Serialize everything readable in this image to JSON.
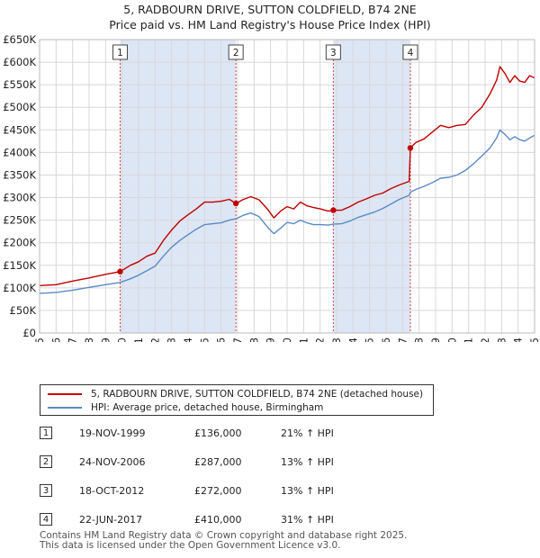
{
  "header": {
    "title": "5, RADBOURN DRIVE, SUTTON COLDFIELD, B74 2NE",
    "subtitle": "Price paid vs. HM Land Registry's House Price Index (HPI)"
  },
  "colors": {
    "property": "#c00000",
    "hpi": "#5a8ac6",
    "shade": "#dde6f5",
    "marker": "#d04040"
  },
  "chart_data": {
    "type": "line",
    "xlim": [
      1995,
      2025
    ],
    "ylim": [
      0,
      650000
    ],
    "x_ticks": [
      "1995",
      "1996",
      "1997",
      "1998",
      "1999",
      "2000",
      "2001",
      "2002",
      "2003",
      "2004",
      "2005",
      "2006",
      "2007",
      "2008",
      "2009",
      "2010",
      "2011",
      "2012",
      "2013",
      "2014",
      "2015",
      "2016",
      "2017",
      "2018",
      "2019",
      "2020",
      "2021",
      "2022",
      "2023",
      "2024",
      "2025"
    ],
    "y_ticks": [
      {
        "value": 0,
        "label": "£0"
      },
      {
        "value": 50000,
        "label": "£50K"
      },
      {
        "value": 100000,
        "label": "£100K"
      },
      {
        "value": 150000,
        "label": "£150K"
      },
      {
        "value": 200000,
        "label": "£200K"
      },
      {
        "value": 250000,
        "label": "£250K"
      },
      {
        "value": 300000,
        "label": "£300K"
      },
      {
        "value": 350000,
        "label": "£350K"
      },
      {
        "value": 400000,
        "label": "£400K"
      },
      {
        "value": 450000,
        "label": "£450K"
      },
      {
        "value": 500000,
        "label": "£500K"
      },
      {
        "value": 550000,
        "label": "£550K"
      },
      {
        "value": 600000,
        "label": "£600K"
      },
      {
        "value": 650000,
        "label": "£650K"
      }
    ],
    "grid": true,
    "series": [
      {
        "name": "5, RADBOURN DRIVE, SUTTON COLDFIELD, B74 2NE (detached house)",
        "color": "#c00000",
        "points": [
          [
            1995.0,
            105000
          ],
          [
            1996.0,
            107000
          ],
          [
            1997.0,
            115000
          ],
          [
            1998.0,
            122000
          ],
          [
            1999.0,
            130000
          ],
          [
            1999.88,
            136000
          ],
          [
            2000.5,
            150000
          ],
          [
            2001.0,
            158000
          ],
          [
            2001.5,
            170000
          ],
          [
            2002.0,
            177000
          ],
          [
            2002.5,
            205000
          ],
          [
            2003.0,
            228000
          ],
          [
            2003.5,
            248000
          ],
          [
            2004.0,
            262000
          ],
          [
            2004.5,
            275000
          ],
          [
            2005.0,
            290000
          ],
          [
            2005.5,
            290000
          ],
          [
            2006.0,
            292000
          ],
          [
            2006.5,
            296000
          ],
          [
            2006.9,
            287000
          ],
          [
            2007.3,
            295000
          ],
          [
            2007.8,
            302000
          ],
          [
            2008.3,
            295000
          ],
          [
            2008.8,
            275000
          ],
          [
            2009.2,
            255000
          ],
          [
            2009.6,
            270000
          ],
          [
            2010.0,
            280000
          ],
          [
            2010.4,
            275000
          ],
          [
            2010.8,
            290000
          ],
          [
            2011.2,
            282000
          ],
          [
            2011.6,
            278000
          ],
          [
            2012.0,
            275000
          ],
          [
            2012.5,
            270000
          ],
          [
            2012.8,
            272000
          ],
          [
            2013.3,
            272000
          ],
          [
            2013.8,
            280000
          ],
          [
            2014.3,
            290000
          ],
          [
            2014.8,
            297000
          ],
          [
            2015.3,
            305000
          ],
          [
            2015.8,
            310000
          ],
          [
            2016.3,
            320000
          ],
          [
            2016.8,
            328000
          ],
          [
            2017.4,
            336000
          ],
          [
            2017.47,
            410000
          ],
          [
            2017.8,
            422000
          ],
          [
            2018.3,
            430000
          ],
          [
            2018.8,
            445000
          ],
          [
            2019.3,
            460000
          ],
          [
            2019.8,
            455000
          ],
          [
            2020.3,
            460000
          ],
          [
            2020.8,
            462000
          ],
          [
            2021.3,
            483000
          ],
          [
            2021.8,
            500000
          ],
          [
            2022.3,
            530000
          ],
          [
            2022.7,
            560000
          ],
          [
            2022.9,
            590000
          ],
          [
            2023.2,
            575000
          ],
          [
            2023.5,
            555000
          ],
          [
            2023.8,
            570000
          ],
          [
            2024.1,
            558000
          ],
          [
            2024.4,
            555000
          ],
          [
            2024.7,
            570000
          ],
          [
            2025.0,
            565000
          ]
        ]
      },
      {
        "name": "HPI: Average price, detached house, Birmingham",
        "color": "#5a8ac6",
        "points": [
          [
            1995.0,
            88000
          ],
          [
            1996.0,
            90000
          ],
          [
            1997.0,
            95000
          ],
          [
            1998.0,
            101000
          ],
          [
            1999.0,
            107000
          ],
          [
            1999.88,
            112000
          ],
          [
            2000.5,
            120000
          ],
          [
            2001.0,
            128000
          ],
          [
            2001.5,
            138000
          ],
          [
            2002.0,
            148000
          ],
          [
            2002.5,
            170000
          ],
          [
            2003.0,
            190000
          ],
          [
            2003.5,
            205000
          ],
          [
            2004.0,
            218000
          ],
          [
            2004.5,
            230000
          ],
          [
            2005.0,
            240000
          ],
          [
            2005.5,
            242000
          ],
          [
            2006.0,
            244000
          ],
          [
            2006.5,
            250000
          ],
          [
            2006.9,
            253000
          ],
          [
            2007.3,
            260000
          ],
          [
            2007.8,
            266000
          ],
          [
            2008.3,
            258000
          ],
          [
            2008.8,
            235000
          ],
          [
            2009.2,
            220000
          ],
          [
            2009.6,
            232000
          ],
          [
            2010.0,
            245000
          ],
          [
            2010.4,
            242000
          ],
          [
            2010.8,
            250000
          ],
          [
            2011.2,
            244000
          ],
          [
            2011.6,
            240000
          ],
          [
            2012.0,
            240000
          ],
          [
            2012.5,
            239000
          ],
          [
            2012.8,
            241000
          ],
          [
            2013.3,
            242000
          ],
          [
            2013.8,
            248000
          ],
          [
            2014.3,
            256000
          ],
          [
            2014.8,
            262000
          ],
          [
            2015.3,
            268000
          ],
          [
            2015.8,
            276000
          ],
          [
            2016.3,
            286000
          ],
          [
            2016.8,
            296000
          ],
          [
            2017.4,
            305000
          ],
          [
            2017.47,
            312000
          ],
          [
            2017.8,
            318000
          ],
          [
            2018.3,
            325000
          ],
          [
            2018.8,
            333000
          ],
          [
            2019.3,
            343000
          ],
          [
            2019.8,
            345000
          ],
          [
            2020.3,
            350000
          ],
          [
            2020.8,
            360000
          ],
          [
            2021.3,
            375000
          ],
          [
            2021.8,
            392000
          ],
          [
            2022.3,
            410000
          ],
          [
            2022.7,
            432000
          ],
          [
            2022.9,
            450000
          ],
          [
            2023.2,
            440000
          ],
          [
            2023.5,
            428000
          ],
          [
            2023.8,
            435000
          ],
          [
            2024.1,
            428000
          ],
          [
            2024.4,
            425000
          ],
          [
            2024.7,
            432000
          ],
          [
            2025.0,
            438000
          ]
        ]
      }
    ],
    "shaded_ranges": [
      [
        1999.88,
        2006.9
      ],
      [
        2012.8,
        2017.47
      ]
    ],
    "markers": [
      {
        "label": "1",
        "x": 1999.88,
        "y": 136000
      },
      {
        "label": "2",
        "x": 2006.9,
        "y": 287000
      },
      {
        "label": "3",
        "x": 2012.8,
        "y": 272000
      },
      {
        "label": "4",
        "x": 2017.47,
        "y": 410000
      }
    ]
  },
  "legend": [
    {
      "label": "5, RADBOURN DRIVE, SUTTON COLDFIELD, B74 2NE (detached house)",
      "color": "#c00000"
    },
    {
      "label": "HPI: Average price, detached house, Birmingham",
      "color": "#5a8ac6"
    }
  ],
  "sales": [
    {
      "num": "1",
      "date": "19-NOV-1999",
      "price": "£136,000",
      "hpi": "21% ↑ HPI"
    },
    {
      "num": "2",
      "date": "24-NOV-2006",
      "price": "£287,000",
      "hpi": "13% ↑ HPI"
    },
    {
      "num": "3",
      "date": "18-OCT-2012",
      "price": "£272,000",
      "hpi": "13% ↑ HPI"
    },
    {
      "num": "4",
      "date": "22-JUN-2017",
      "price": "£410,000",
      "hpi": "31% ↑ HPI"
    }
  ],
  "footer": {
    "line1": "Contains HM Land Registry data © Crown copyright and database right 2025.",
    "line2": "This data is licensed under the Open Government Licence v3.0."
  }
}
